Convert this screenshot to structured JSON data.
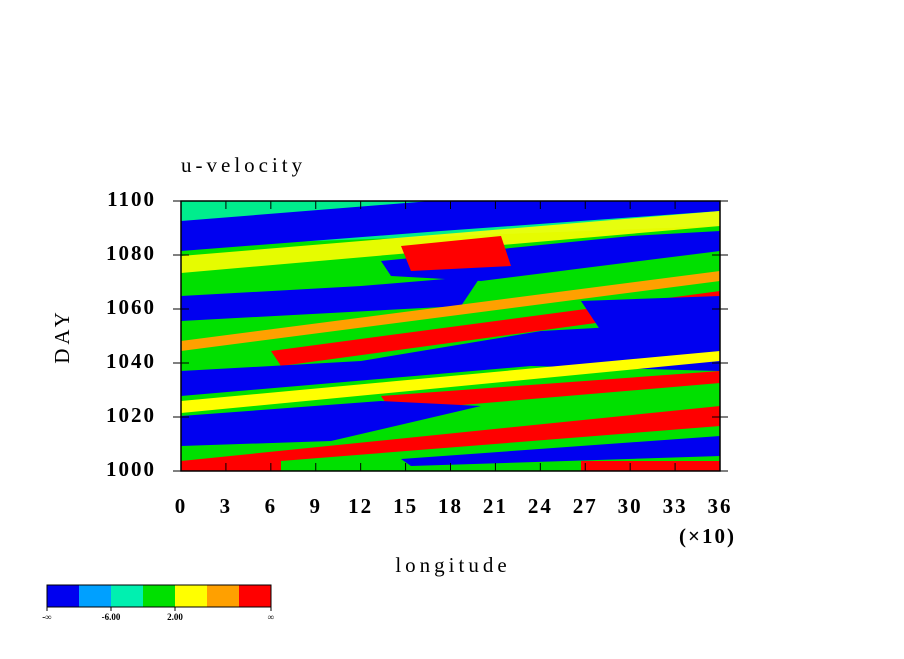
{
  "chart_data": {
    "type": "filled-contour",
    "title": "u-velocity",
    "x_label": "longitude",
    "y_label": "DAY",
    "x_multiplier": "(×10)",
    "xlim": [
      0,
      36
    ],
    "xticks": [
      0,
      3,
      6,
      9,
      12,
      15,
      18,
      21,
      24,
      27,
      30,
      33,
      36
    ],
    "ylim": [
      1000,
      1100
    ],
    "yticks": [
      1000,
      1020,
      1040,
      1060,
      1080,
      1100
    ],
    "colorbar": {
      "colors": [
        "#0000f0",
        "#00a0ff",
        "#00f0b0",
        "#00e000",
        "#ffff00",
        "#ffa000",
        "#ff0000"
      ],
      "labels": [
        "-∞",
        "-6.00",
        "2.00",
        "∞"
      ]
    }
  }
}
